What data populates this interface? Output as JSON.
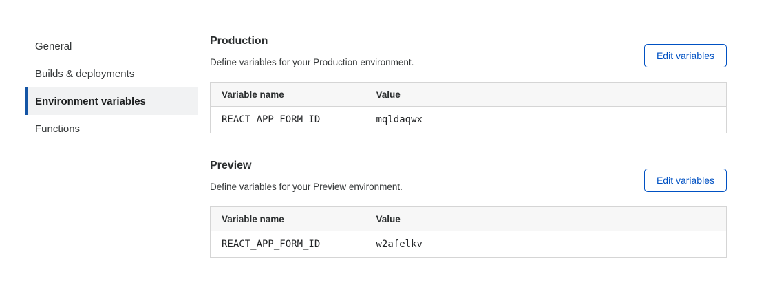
{
  "sidebar": {
    "items": [
      {
        "label": "General",
        "active": false
      },
      {
        "label": "Builds & deployments",
        "active": false
      },
      {
        "label": "Environment variables",
        "active": true
      },
      {
        "label": "Functions",
        "active": false
      }
    ]
  },
  "sections": [
    {
      "title": "Production",
      "description": "Define variables for your Production environment.",
      "edit_button_label": "Edit variables",
      "table": {
        "columns": {
          "name": "Variable name",
          "value": "Value"
        },
        "rows": [
          {
            "name": "REACT_APP_FORM_ID",
            "value": "mqldaqwx"
          }
        ]
      }
    },
    {
      "title": "Preview",
      "description": "Define variables for your Preview environment.",
      "edit_button_label": "Edit variables",
      "table": {
        "columns": {
          "name": "Variable name",
          "value": "Value"
        },
        "rows": [
          {
            "name": "REACT_APP_FORM_ID",
            "value": "w2afelkv"
          }
        ]
      }
    }
  ],
  "colors": {
    "accent_blue": "#0051c3",
    "active_indicator_blue": "#1455a5",
    "active_item_bg": "#f1f2f3",
    "table_header_bg": "#f7f7f7",
    "table_border": "#d5d5d5"
  }
}
